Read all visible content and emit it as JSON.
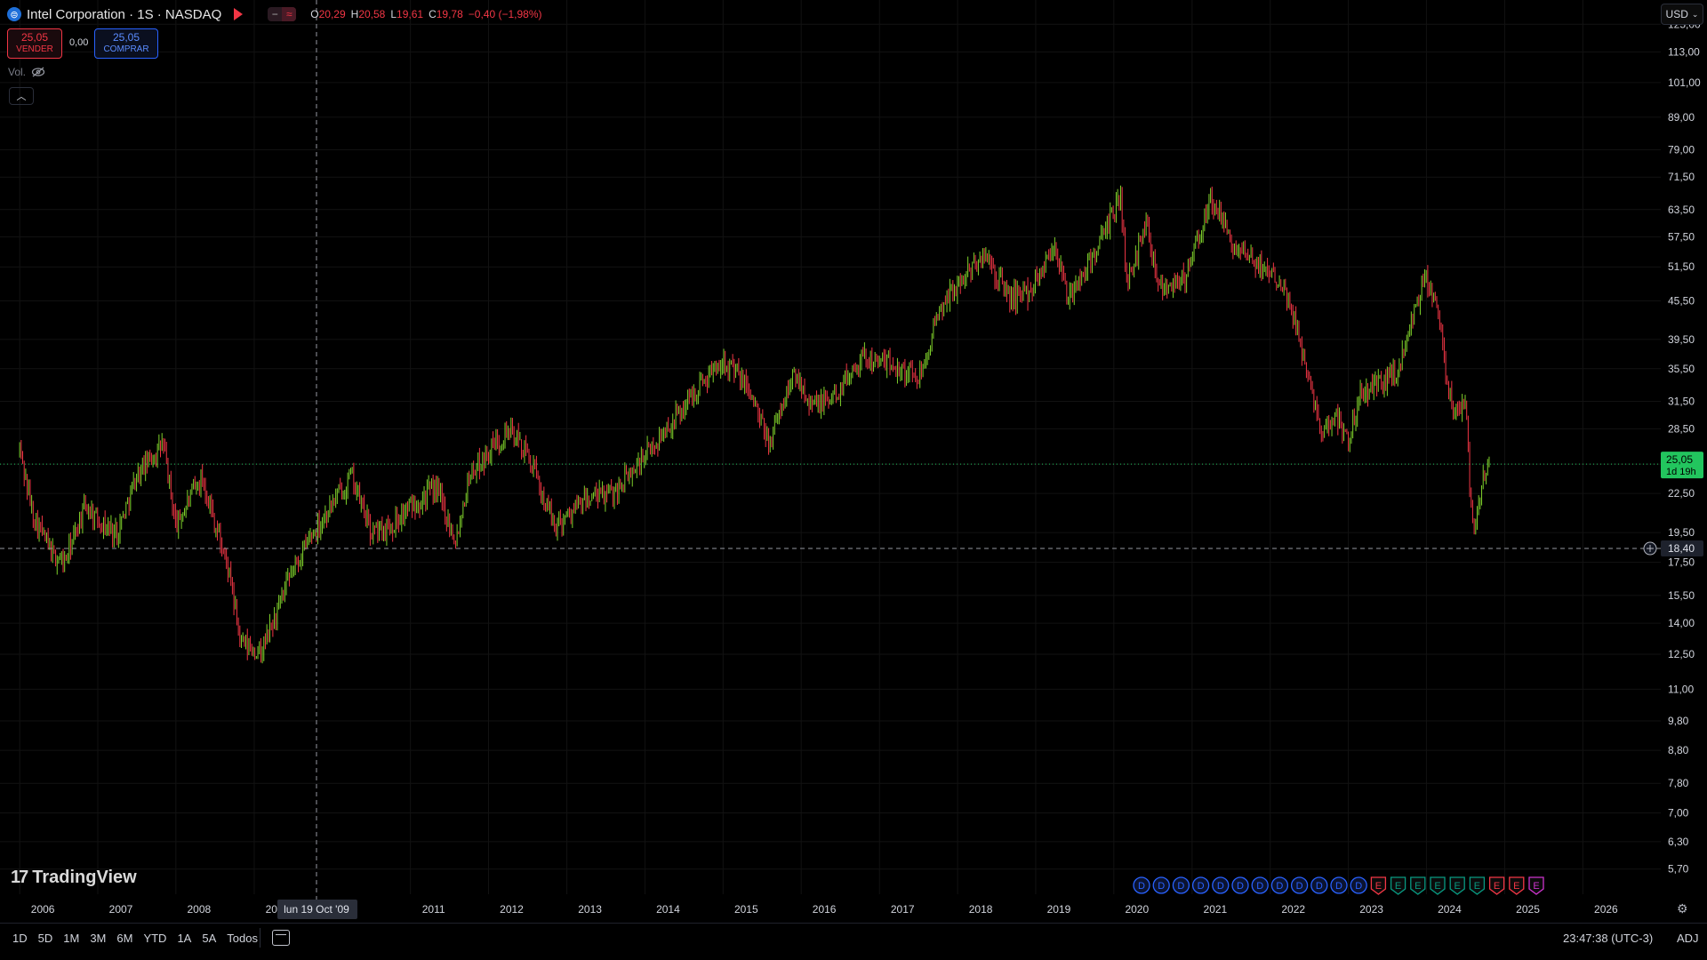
{
  "header": {
    "symbol_icon": "globe-icon",
    "title": "Intel Corporation · 1S · NASDAQ",
    "ohlc": {
      "o_label": "O",
      "o": "20,29",
      "h_label": "H",
      "h": "20,58",
      "l_label": "L",
      "l": "19,61",
      "c_label": "C",
      "c": "19,78",
      "change": "−0,40 (−1,98%)"
    }
  },
  "trade": {
    "sell_price": "25,05",
    "sell_label": "VENDER",
    "spread": "0,00",
    "buy_price": "25,05",
    "buy_label": "COMPRAR"
  },
  "volume_label": "Vol.",
  "currency": "USD",
  "brand": "TradingView",
  "crosshair_date": "lun 19 Oct '09",
  "range_buttons": [
    "1D",
    "5D",
    "1M",
    "3M",
    "6M",
    "YTD",
    "1A",
    "5A",
    "Todos"
  ],
  "clock": "23:47:38 (UTC-3)",
  "adj": "ADJ",
  "colors": {
    "up": "#26a69a",
    "up_candle": "#7fd12b",
    "down": "#f23645",
    "last_price_bg": "#22c55e",
    "earnings": "#f23645",
    "dividend": "#2962ff",
    "teal": "#089981"
  },
  "chart_data": {
    "type": "candlestick",
    "scale": "log",
    "ylim": [
      5.2,
      128
    ],
    "xlim": [
      "2005-10-01",
      "2026-12-31"
    ],
    "y_ticks": [
      "125,00",
      "113,00",
      "101,00",
      "89,00",
      "79,00",
      "71,50",
      "63,50",
      "57,50",
      "51,50",
      "45,50",
      "39,50",
      "35,50",
      "31,50",
      "28,50",
      "25,05",
      "22,50",
      "19,50",
      "17,50",
      "15,50",
      "14,00",
      "12,50",
      "11,00",
      "9,80",
      "8,80",
      "7,80",
      "7,00",
      "6,30",
      "5,70"
    ],
    "x_ticks": [
      "2006",
      "2007",
      "2008",
      "2009",
      "2011",
      "2012",
      "2013",
      "2014",
      "2015",
      "2016",
      "2017",
      "2018",
      "2019",
      "2020",
      "2021",
      "2022",
      "2023",
      "2024",
      "2025",
      "2026"
    ],
    "last_price": {
      "value": 25.05,
      "label": "25,05",
      "countdown": "1d 19h"
    },
    "crosshair_price": {
      "value": 18.4,
      "label": "18,40"
    },
    "price_path": [
      [
        "2006-01-01",
        26.5
      ],
      [
        "2006-03-01",
        21.0
      ],
      [
        "2006-06-01",
        18.0
      ],
      [
        "2006-08-01",
        17.5
      ],
      [
        "2006-11-01",
        21.5
      ],
      [
        "2007-02-01",
        20.0
      ],
      [
        "2007-04-01",
        19.5
      ],
      [
        "2007-07-01",
        24.0
      ],
      [
        "2007-11-01",
        27.0
      ],
      [
        "2008-01-01",
        20.0
      ],
      [
        "2008-05-01",
        24.0
      ],
      [
        "2008-09-01",
        17.0
      ],
      [
        "2008-11-01",
        13.0
      ],
      [
        "2009-02-01",
        12.5
      ],
      [
        "2009-07-01",
        17.0
      ],
      [
        "2009-10-01",
        19.5
      ],
      [
        "2010-04-01",
        24.0
      ],
      [
        "2010-07-01",
        19.5
      ],
      [
        "2010-10-01",
        20.0
      ],
      [
        "2011-01-01",
        21.5
      ],
      [
        "2011-05-01",
        23.0
      ],
      [
        "2011-08-01",
        19.0
      ],
      [
        "2011-10-01",
        24.0
      ],
      [
        "2012-04-01",
        28.5
      ],
      [
        "2012-07-01",
        26.0
      ],
      [
        "2012-11-01",
        20.0
      ],
      [
        "2013-04-01",
        22.0
      ],
      [
        "2013-08-01",
        22.5
      ],
      [
        "2013-12-01",
        25.0
      ],
      [
        "2014-06-01",
        30.0
      ],
      [
        "2014-10-01",
        34.0
      ],
      [
        "2015-01-01",
        37.0
      ],
      [
        "2015-05-01",
        33.0
      ],
      [
        "2015-08-01",
        27.0
      ],
      [
        "2015-12-01",
        35.0
      ],
      [
        "2016-03-01",
        31.0
      ],
      [
        "2016-06-01",
        32.0
      ],
      [
        "2016-10-01",
        37.0
      ],
      [
        "2017-03-01",
        36.0
      ],
      [
        "2017-07-01",
        34.5
      ],
      [
        "2017-11-01",
        45.5
      ],
      [
        "2018-05-01",
        54.0
      ],
      [
        "2018-09-01",
        46.0
      ],
      [
        "2018-12-01",
        47.0
      ],
      [
        "2019-04-01",
        56.0
      ],
      [
        "2019-06-01",
        45.5
      ],
      [
        "2019-12-01",
        59.0
      ],
      [
        "2020-02-01",
        68.0
      ],
      [
        "2020-03-01",
        48.0
      ],
      [
        "2020-06-01",
        61.0
      ],
      [
        "2020-08-01",
        48.0
      ],
      [
        "2020-12-01",
        49.5
      ],
      [
        "2021-04-01",
        66.0
      ],
      [
        "2021-08-01",
        54.0
      ],
      [
        "2021-12-01",
        51.5
      ],
      [
        "2022-03-01",
        49.0
      ],
      [
        "2022-06-01",
        38.0
      ],
      [
        "2022-09-01",
        28.0
      ],
      [
        "2022-11-01",
        30.0
      ],
      [
        "2023-01-01",
        27.5
      ],
      [
        "2023-03-01",
        32.5
      ],
      [
        "2023-06-01",
        33.5
      ],
      [
        "2023-09-01",
        36.0
      ],
      [
        "2023-12-01",
        47.0
      ],
      [
        "2024-01-01",
        49.0
      ],
      [
        "2024-03-01",
        43.0
      ],
      [
        "2024-04-01",
        35.0
      ],
      [
        "2024-05-01",
        30.5
      ],
      [
        "2024-07-01",
        31.5
      ],
      [
        "2024-08-01",
        20.0
      ],
      [
        "2024-09-01",
        21.5
      ],
      [
        "2024-10-01",
        24.5
      ],
      [
        "2024-10-20",
        25.05
      ]
    ],
    "event_markers": [
      {
        "label": "D",
        "color": "#2962ff"
      },
      {
        "label": "D",
        "color": "#2962ff"
      },
      {
        "label": "D",
        "color": "#2962ff"
      },
      {
        "label": "D",
        "color": "#2962ff"
      },
      {
        "label": "D",
        "color": "#2962ff"
      },
      {
        "label": "D",
        "color": "#2962ff"
      },
      {
        "label": "D",
        "color": "#2962ff"
      },
      {
        "label": "D",
        "color": "#2962ff"
      },
      {
        "label": "D",
        "color": "#2962ff"
      },
      {
        "label": "D",
        "color": "#2962ff"
      },
      {
        "label": "D",
        "color": "#2962ff"
      },
      {
        "label": "D",
        "color": "#2962ff"
      },
      {
        "label": "E",
        "color": "#f23645"
      },
      {
        "label": "E",
        "color": "#089981"
      },
      {
        "label": "E",
        "color": "#089981"
      },
      {
        "label": "E",
        "color": "#089981"
      },
      {
        "label": "E",
        "color": "#089981"
      },
      {
        "label": "E",
        "color": "#089981"
      },
      {
        "label": "E",
        "color": "#f23645"
      },
      {
        "label": "E",
        "color": "#f23645"
      },
      {
        "label": "E",
        "color": "#cc33cc"
      }
    ]
  }
}
